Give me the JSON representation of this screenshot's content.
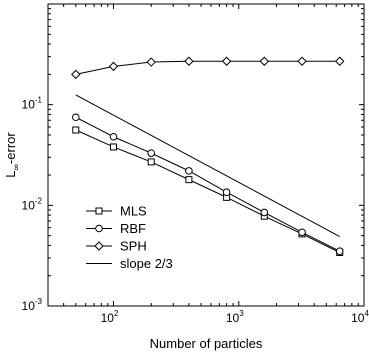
{
  "chart_data": {
    "type": "line",
    "xlabel": "Number of particles",
    "ylabel": "L",
    "ylabel_subscript": "∞",
    "ylabel_suffix": "-error",
    "xscale": "log",
    "yscale": "log",
    "xlim": [
      30,
      10000
    ],
    "ylim": [
      0.001,
      1
    ],
    "x_ticks": [
      {
        "value": 100,
        "base": "10",
        "exp": "2"
      },
      {
        "value": 1000,
        "base": "10",
        "exp": "3"
      },
      {
        "value": 10000,
        "base": "10",
        "exp": "4"
      }
    ],
    "y_ticks": [
      {
        "value": 0.001,
        "base": "10",
        "exp": "-3"
      },
      {
        "value": 0.01,
        "base": "10",
        "exp": "-2"
      },
      {
        "value": 0.1,
        "base": "10",
        "exp": "-1"
      }
    ],
    "grid": false,
    "legend_position": "lower-left",
    "series": [
      {
        "name": "MLS",
        "marker": "square",
        "x": [
          50,
          100,
          200,
          400,
          800,
          1600,
          3200,
          6400
        ],
        "y": [
          0.056,
          0.038,
          0.027,
          0.018,
          0.012,
          0.0078,
          0.0052,
          0.0034
        ]
      },
      {
        "name": "RBF",
        "marker": "circle",
        "x": [
          50,
          100,
          200,
          400,
          800,
          1600,
          3200,
          6400
        ],
        "y": [
          0.075,
          0.048,
          0.033,
          0.022,
          0.0135,
          0.0085,
          0.0054,
          0.0035
        ]
      },
      {
        "name": "SPH",
        "marker": "diamond",
        "x": [
          50,
          100,
          200,
          400,
          800,
          1600,
          3200,
          6400
        ],
        "y": [
          0.2,
          0.24,
          0.265,
          0.27,
          0.27,
          0.27,
          0.27,
          0.27
        ]
      },
      {
        "name": "slope 2/3",
        "marker": "none",
        "x": [
          50,
          6400
        ],
        "y": [
          0.125,
          0.0049
        ]
      }
    ]
  }
}
